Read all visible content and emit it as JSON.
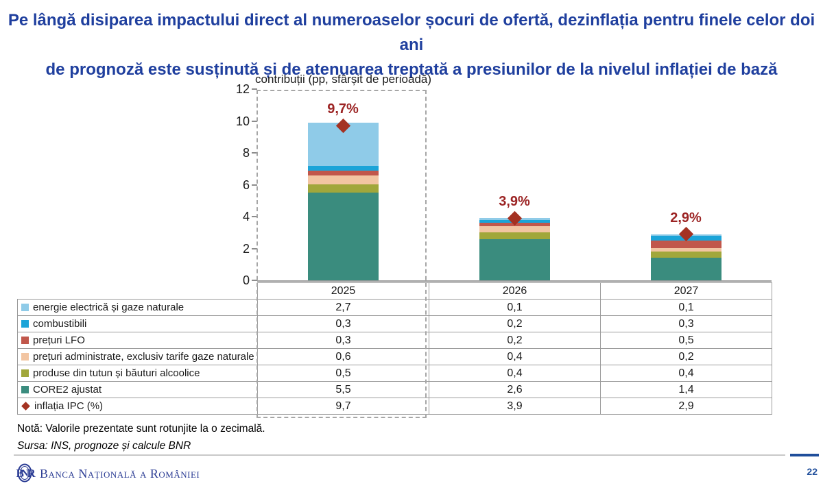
{
  "slide": {
    "title_line1": "Pe lângă disiparea impactului direct al numeroaselor șocuri de ofertă, dezinflația pentru finele celor doi ani",
    "title_line2": "de prognoză este susținută și de atenuarea treptată a presiunilor de la nivelul inflației de bază",
    "note": "Notă: Valorile prezentate sunt rotunjite la o zecimală.",
    "source": "Sursa: INS, prognoze și calcule BNR",
    "page_number": "22",
    "bank_name": "Banca Națională a României"
  },
  "colors": {
    "title_blue": "#1F3F9E",
    "marker_red": "#A43222",
    "label_red": "#9C2424",
    "footer_blue": "#1F4E9B",
    "logo_blue": "#2B3C94",
    "axis_gray": "#9b9b9b",
    "dash_gray": "#a6a6a6"
  },
  "chart_data": {
    "type": "bar",
    "stacked": true,
    "title": "contribuții (pp, sfârșit de perioadă)",
    "categories": [
      "2025",
      "2026",
      "2027"
    ],
    "series": [
      {
        "name": "energie electrică și gaze naturale",
        "color": "#8FCBE8",
        "values": [
          2.7,
          0.1,
          0.1
        ]
      },
      {
        "name": "combustibili",
        "color": "#1BA4D8",
        "values": [
          0.3,
          0.2,
          0.3
        ]
      },
      {
        "name": "prețuri LFO",
        "color": "#C1574B",
        "values": [
          0.3,
          0.2,
          0.5
        ]
      },
      {
        "name": "prețuri administrate, exclusiv tarife gaze naturale",
        "color": "#F2C5A2",
        "values": [
          0.6,
          0.4,
          0.2
        ]
      },
      {
        "name": "produse din tutun și băuturi alcoolice",
        "color": "#A1A73B",
        "values": [
          0.5,
          0.4,
          0.4
        ]
      },
      {
        "name": "CORE2 ajustat",
        "color": "#3A8C7E",
        "values": [
          5.5,
          2.6,
          1.4
        ]
      }
    ],
    "totals_markers": {
      "name": "inflația IPC (%)",
      "marker": "diamond",
      "color": "#A43222",
      "label_color": "#9C2424",
      "values": [
        9.7,
        3.9,
        2.9
      ],
      "labels": [
        "9,7%",
        "3,9%",
        "2,9%"
      ]
    },
    "ylim": [
      0,
      12
    ],
    "yticks": [
      0,
      2,
      4,
      6,
      8,
      10,
      12
    ],
    "grid": false,
    "legend_position": "table-below-chart",
    "highlighted_category": "2025"
  },
  "table": {
    "years": [
      "2025",
      "2026",
      "2027"
    ],
    "rows": [
      {
        "label": "energie electrică și gaze naturale",
        "swatch": "square",
        "color": "#8FCBE8",
        "values": [
          "2,7",
          "0,1",
          "0,1"
        ]
      },
      {
        "label": "combustibili",
        "swatch": "square",
        "color": "#1BA4D8",
        "values": [
          "0,3",
          "0,2",
          "0,3"
        ]
      },
      {
        "label": "prețuri LFO",
        "swatch": "square",
        "color": "#C1574B",
        "values": [
          "0,3",
          "0,2",
          "0,5"
        ]
      },
      {
        "label": "prețuri administrate, exclusiv tarife gaze naturale",
        "swatch": "square",
        "color": "#F2C5A2",
        "values": [
          "0,6",
          "0,4",
          "0,2"
        ]
      },
      {
        "label": "produse din tutun și băuturi alcoolice",
        "swatch": "square",
        "color": "#A1A73B",
        "values": [
          "0,5",
          "0,4",
          "0,4"
        ]
      },
      {
        "label": "CORE2 ajustat",
        "swatch": "square",
        "color": "#3A8C7E",
        "values": [
          "5,5",
          "2,6",
          "1,4"
        ]
      },
      {
        "label": "inflația IPC (%)",
        "swatch": "diamond",
        "color": "#A43222",
        "values": [
          "9,7",
          "3,9",
          "2,9"
        ]
      }
    ]
  }
}
